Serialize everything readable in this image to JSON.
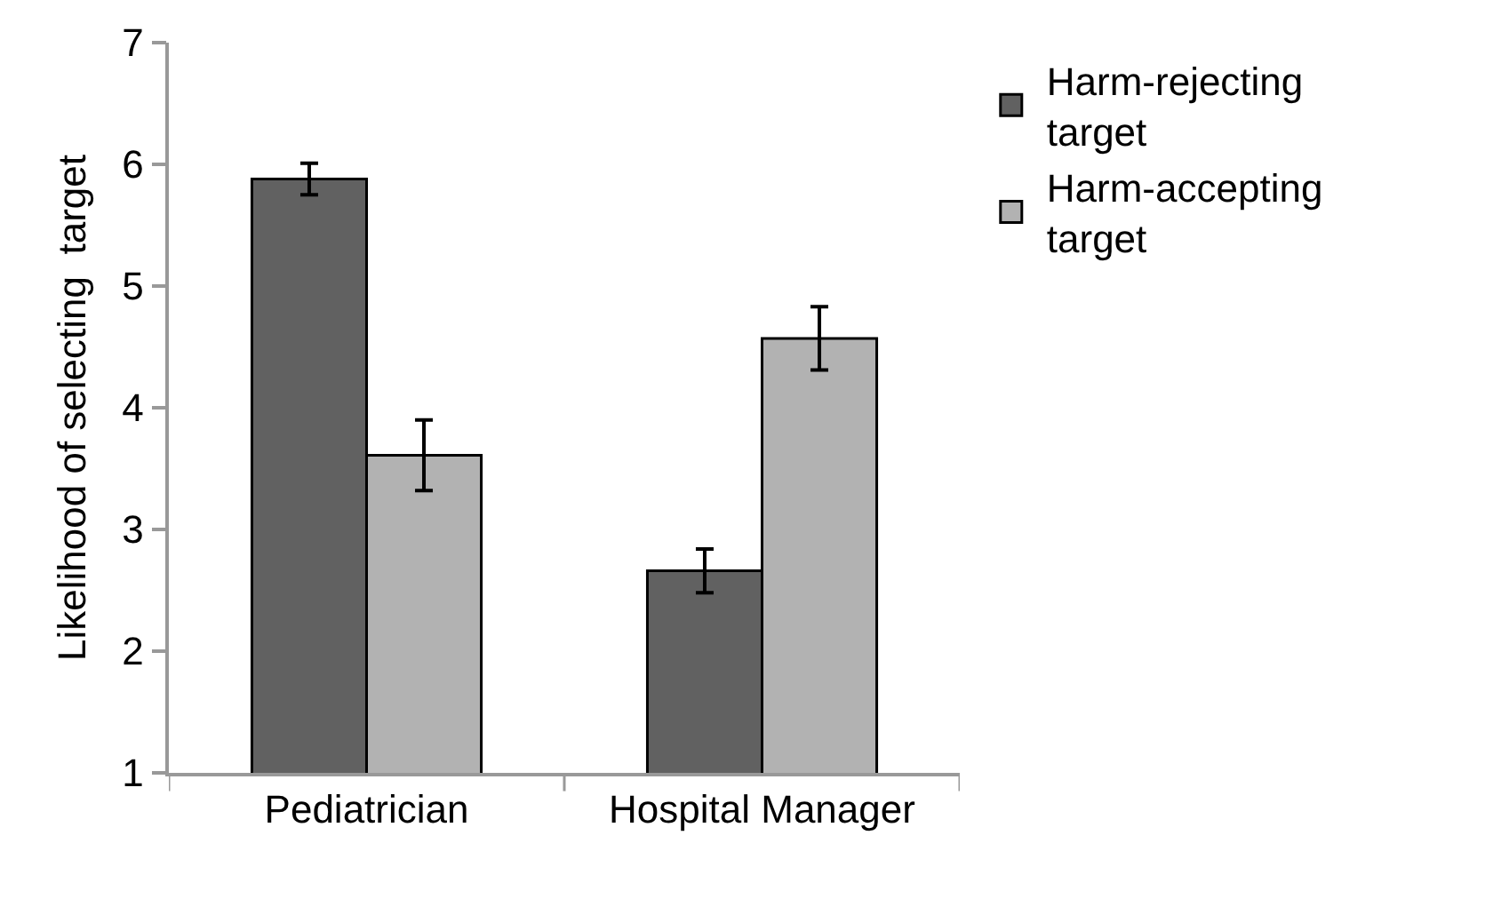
{
  "chart_data": {
    "type": "bar",
    "ylabel": "Likelihood of selecting  target",
    "categories": [
      "Pediatrician",
      "Hospital Manager"
    ],
    "series": [
      {
        "name": "Harm-rejecting target",
        "color": "#616161",
        "values": [
          5.88,
          2.66
        ],
        "errors": [
          0.13,
          0.18
        ]
      },
      {
        "name": "Harm-accepting target",
        "color": "#b2b2b2",
        "values": [
          3.61,
          4.57
        ],
        "errors": [
          0.29,
          0.26
        ]
      }
    ],
    "ylim": [
      1,
      7
    ],
    "yticks": [
      1,
      2,
      3,
      4,
      5,
      6,
      7
    ],
    "grid": false,
    "legend": "top right"
  }
}
